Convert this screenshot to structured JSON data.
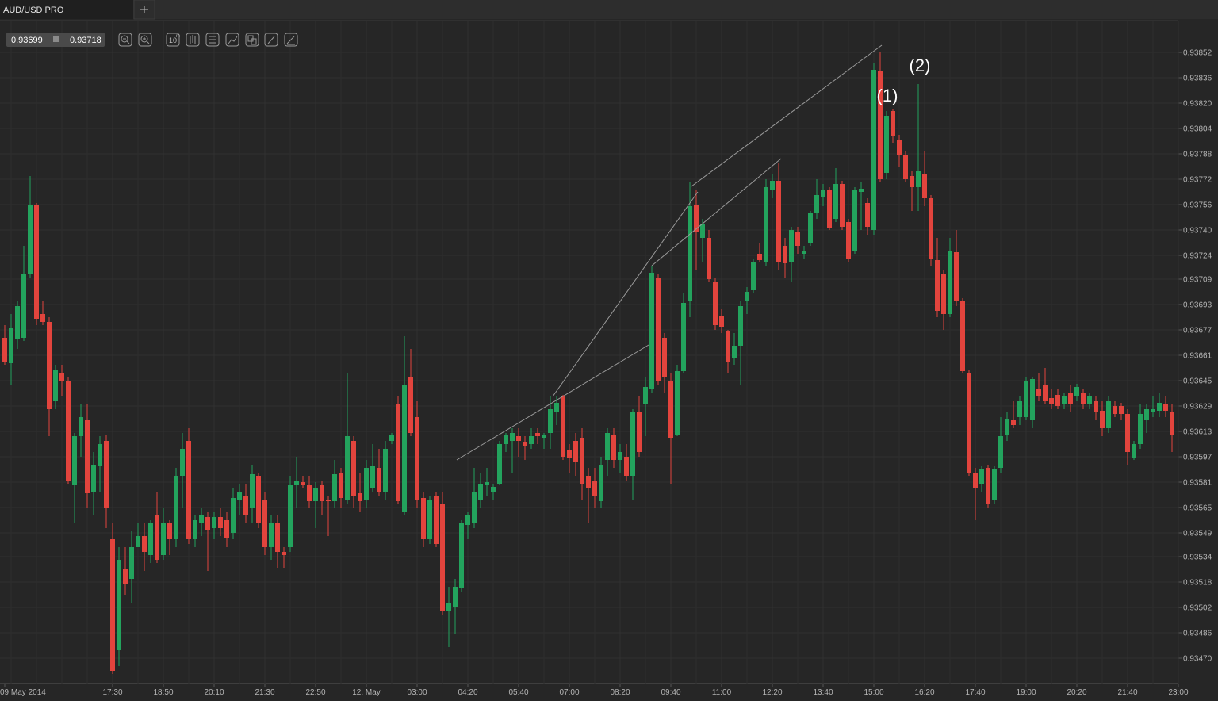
{
  "ui": {
    "tab_title": "AUD/USD PRO",
    "bid": "0.93699",
    "ask": "0.93718",
    "interval": "10",
    "interval_unit": "m"
  },
  "chart_data": {
    "type": "candlestick",
    "categories": [
      "09 May 2014",
      null,
      null,
      null,
      null,
      null,
      null,
      null,
      null,
      null,
      null,
      null,
      null,
      null,
      null,
      null,
      null,
      "17:30",
      null,
      null,
      null,
      null,
      null,
      null,
      null,
      "18:50",
      null,
      null,
      null,
      null,
      null,
      null,
      null,
      "20:10",
      null,
      null,
      null,
      null,
      null,
      null,
      null,
      "21:30",
      null,
      null,
      null,
      null,
      null,
      null,
      null,
      "22:50",
      null,
      null,
      null,
      null,
      null,
      null,
      null,
      "12. May",
      null,
      null,
      null,
      null,
      null,
      null,
      null,
      "03:00",
      null,
      null,
      null,
      null,
      null,
      null,
      null,
      "04:20",
      null,
      null,
      null,
      null,
      null,
      null,
      null,
      "05:40",
      null,
      null,
      null,
      null,
      null,
      null,
      null,
      "07:00",
      null,
      null,
      null,
      null,
      null,
      null,
      null,
      "08:20",
      null,
      null,
      null,
      null,
      null,
      null,
      null,
      "09:40",
      null,
      null,
      null,
      null,
      null,
      null,
      null,
      "11:00",
      null,
      null,
      null,
      null,
      null,
      null,
      null,
      "12:20",
      null,
      null,
      null,
      null,
      null,
      null,
      null,
      "13:40",
      null,
      null,
      null,
      null,
      null,
      null,
      null,
      "15:00",
      null,
      null,
      null,
      null,
      null,
      null,
      null,
      "16:20",
      null,
      null,
      null,
      null,
      null,
      null,
      null,
      "17:40",
      null,
      null,
      null,
      null,
      null,
      null,
      null,
      "19:00",
      null,
      null,
      null,
      null,
      null,
      null,
      null,
      "20:20",
      null,
      null,
      null,
      null,
      null,
      null,
      null,
      "21:40",
      null,
      null,
      null,
      null,
      null,
      null,
      null,
      "23:00"
    ],
    "open": [
      0.93672,
      0.93656,
      0.93671,
      0.93672,
      0.93712,
      0.93756,
      0.93687,
      0.93682,
      0.93632,
      0.9365,
      0.93645,
      0.93579,
      0.9361,
      0.9362,
      0.93575,
      0.93591,
      0.93607,
      0.93545,
      0.93475,
      0.93526,
      0.9352,
      0.9354,
      0.93547,
      0.93535,
      0.9356,
      0.93535,
      0.93555,
      0.93545,
      0.93585,
      0.93607,
      0.93545,
      0.93555,
      0.93559,
      0.93552,
      0.93559,
      0.93557,
      0.93549,
      0.9357,
      0.93572,
      0.93565,
      0.93585,
      0.9357,
      0.9354,
      0.93555,
      0.93537,
      0.9354,
      0.93579,
      0.93581,
      0.93579,
      0.93569,
      0.93579,
      0.9357,
      0.93569,
      0.93587,
      0.9357,
      0.93607,
      0.93574,
      0.9357,
      0.93577,
      0.9359,
      0.93575,
      0.93607,
      0.9363,
      0.93562,
      0.93647,
      0.93622,
      0.93571,
      0.93545,
      0.93572,
      0.93567,
      0.935,
      0.93502,
      0.93514,
      0.93554,
      0.93555,
      0.9357,
      0.93579,
      0.93575,
      0.9358,
      0.93605,
      0.93607,
      0.9361,
      0.93606,
      0.93605,
      0.93612,
      0.93609,
      0.93612,
      0.93625,
      0.93635,
      0.93601,
      0.93607,
      0.93609,
      0.93585,
      0.93582,
      0.93569,
      0.93595,
      0.93611,
      0.93595,
      0.93597,
      0.93585,
      0.93625,
      0.9363,
      0.9364,
      0.9371,
      0.93672,
      0.93645,
      0.93611,
      0.93651,
      0.93695,
      0.93756,
      0.93735,
      0.93735,
      0.93707,
      0.93686,
      0.93676,
      0.93659,
      0.93667,
      0.93695,
      0.93702,
      0.93725,
      0.9372,
      0.93765,
      0.93771,
      0.9373,
      0.9372,
      0.93739,
      0.93725,
      0.93732,
      0.93751,
      0.93761,
      0.93765,
      0.93747,
      0.93769,
      0.93745,
      0.93727,
      0.93764,
      0.93757,
      0.9374,
      0.9384,
      0.93776,
      0.93815,
      0.93797,
      0.93787,
      0.93774,
      0.93767,
      0.93775,
      0.9376,
      0.93721,
      0.93712,
      0.93687,
      0.93726,
      0.93695,
      0.9365,
      0.93587,
      0.9358,
      0.9359,
      0.9357,
      0.9359,
      0.93611,
      0.9362,
      0.93622,
      0.93622,
      0.9362,
      0.9364,
      0.93642,
      0.93634,
      0.93636,
      0.9363,
      0.93637,
      0.93635,
      0.93637,
      0.9363,
      0.93632,
      0.93626,
      0.93615,
      0.93629,
      0.93629,
      0.93624,
      0.93596,
      0.93605,
      0.9362,
      0.93625,
      0.93626,
      0.9363,
      0.93625,
      null
    ],
    "high": [
      0.9368,
      0.93687,
      0.93695,
      0.9373,
      0.93774,
      0.93757,
      0.93695,
      0.93685,
      0.93655,
      0.93655,
      0.93647,
      0.93612,
      0.9363,
      0.9363,
      0.936,
      0.9361,
      0.93611,
      0.93555,
      0.9354,
      0.9354,
      0.9355,
      0.93555,
      0.93555,
      0.93557,
      0.93575,
      0.93565,
      0.93557,
      0.9359,
      0.93612,
      0.93615,
      0.9356,
      0.93565,
      0.93562,
      0.93562,
      0.93565,
      0.93562,
      0.93577,
      0.9358,
      0.9358,
      0.93592,
      0.93587,
      0.93575,
      0.9356,
      0.9356,
      0.9354,
      0.93585,
      0.93597,
      0.93585,
      0.93585,
      0.93581,
      0.93582,
      0.93572,
      0.93595,
      0.9359,
      0.9365,
      0.9361,
      0.93587,
      0.93595,
      0.93605,
      0.93602,
      0.93607,
      0.93612,
      0.93635,
      0.93673,
      0.93665,
      0.93632,
      0.93575,
      0.93572,
      0.93575,
      0.93575,
      0.93515,
      0.9352,
      0.93557,
      0.93562,
      0.9359,
      0.93587,
      0.9359,
      0.9358,
      0.93607,
      0.93612,
      0.93615,
      0.93615,
      0.9361,
      0.93615,
      0.93615,
      0.93612,
      0.93635,
      0.93635,
      0.93636,
      0.93605,
      0.93612,
      0.93615,
      0.9359,
      0.9359,
      0.93597,
      0.93615,
      0.93615,
      0.93605,
      0.93605,
      0.93627,
      0.93635,
      0.93647,
      0.93717,
      0.93712,
      0.93675,
      0.9365,
      0.93655,
      0.937,
      0.9377,
      0.93765,
      0.93747,
      0.9374,
      0.9371,
      0.9369,
      0.93677,
      0.93675,
      0.93695,
      0.93704,
      0.93722,
      0.93732,
      0.93772,
      0.93775,
      0.93782,
      0.93735,
      0.93742,
      0.93742,
      0.9373,
      0.93752,
      0.93772,
      0.93769,
      0.93767,
      0.93779,
      0.93771,
      0.93747,
      0.93767,
      0.9377,
      0.9376,
      0.93845,
      0.93852,
      0.93815,
      0.93816,
      0.938,
      0.9379,
      0.93777,
      0.93832,
      0.9379,
      0.93762,
      0.93735,
      0.93715,
      0.93735,
      0.9374,
      0.93697,
      0.93652,
      0.9359,
      0.93591,
      0.93592,
      0.93591,
      0.93622,
      0.93625,
      0.93632,
      0.93635,
      0.93647,
      0.93647,
      0.9365,
      0.93653,
      0.9364,
      0.9364,
      0.93637,
      0.93642,
      0.93643,
      0.9364,
      0.93637,
      0.93635,
      0.93632,
      0.93635,
      0.93632,
      0.93631,
      0.93627,
      0.93607,
      0.9363,
      0.9363,
      0.93635,
      0.93637,
      0.93635,
      0.9363,
      null
    ],
    "low": [
      0.93655,
      0.93642,
      0.93665,
      0.9367,
      0.9371,
      0.9368,
      0.9368,
      0.9361,
      0.93627,
      0.93635,
      0.9358,
      0.93555,
      0.93597,
      0.93565,
      0.9356,
      0.93575,
      0.93552,
      0.9346,
      0.93465,
      0.9351,
      0.93505,
      0.9354,
      0.93525,
      0.9353,
      0.9353,
      0.93532,
      0.93535,
      0.9354,
      0.93565,
      0.93542,
      0.9354,
      0.93547,
      0.93525,
      0.93545,
      0.93547,
      0.9354,
      0.93545,
      0.9356,
      0.93555,
      0.93555,
      0.93552,
      0.93535,
      0.93532,
      0.93527,
      0.93527,
      0.93537,
      0.93565,
      0.93577,
      0.93565,
      0.93552,
      0.9356,
      0.93547,
      0.93565,
      0.93565,
      0.93567,
      0.93565,
      0.93562,
      0.93565,
      0.93575,
      0.93572,
      0.9357,
      0.93605,
      0.93567,
      0.9356,
      0.9361,
      0.93565,
      0.9354,
      0.93542,
      0.9354,
      0.93497,
      0.93477,
      0.93485,
      0.93512,
      0.93545,
      0.93552,
      0.93565,
      0.93572,
      0.9357,
      0.93579,
      0.936,
      0.93587,
      0.93597,
      0.93595,
      0.93602,
      0.93605,
      0.93602,
      0.93602,
      0.93617,
      0.93595,
      0.93587,
      0.93585,
      0.9357,
      0.93555,
      0.93565,
      0.93565,
      0.93585,
      0.9359,
      0.93587,
      0.93582,
      0.9357,
      0.93597,
      0.9361,
      0.93637,
      0.93642,
      0.93637,
      0.9358,
      0.9361,
      0.9365,
      0.93685,
      0.93715,
      0.9372,
      0.93707,
      0.93677,
      0.93675,
      0.9365,
      0.93655,
      0.93642,
      0.93687,
      0.937,
      0.9372,
      0.93717,
      0.9376,
      0.93715,
      0.9371,
      0.93707,
      0.93725,
      0.93722,
      0.9373,
      0.93747,
      0.93755,
      0.9374,
      0.93745,
      0.9374,
      0.9372,
      0.93725,
      0.9374,
      0.93737,
      0.93737,
      0.9377,
      0.93772,
      0.93795,
      0.9378,
      0.9377,
      0.93752,
      0.93752,
      0.93755,
      0.93717,
      0.93685,
      0.93677,
      0.93685,
      0.93692,
      0.9365,
      0.93585,
      0.93557,
      0.93575,
      0.93565,
      0.93567,
      0.93587,
      0.93607,
      0.93615,
      0.93617,
      0.9362,
      0.93615,
      0.93632,
      0.9363,
      0.93627,
      0.93627,
      0.93627,
      0.93625,
      0.93632,
      0.93627,
      0.93627,
      0.9362,
      0.9361,
      0.93612,
      0.93622,
      0.9362,
      0.93592,
      0.93595,
      0.93602,
      0.93612,
      0.93622,
      0.93622,
      0.93622,
      0.936,
      null
    ],
    "close": [
      0.93657,
      0.93678,
      0.93692,
      0.93712,
      0.93756,
      0.93684,
      0.93682,
      0.93627,
      0.93652,
      0.93645,
      0.93582,
      0.9361,
      0.93622,
      0.93574,
      0.93592,
      0.93605,
      0.93565,
      0.93462,
      0.93532,
      0.93517,
      0.9354,
      0.93547,
      0.93537,
      0.93555,
      0.93532,
      0.93555,
      0.93545,
      0.93585,
      0.93602,
      0.93545,
      0.93557,
      0.9356,
      0.93551,
      0.93559,
      0.93552,
      0.93546,
      0.93571,
      0.93575,
      0.9356,
      0.93586,
      0.93555,
      0.9354,
      0.93555,
      0.93537,
      0.93535,
      0.93579,
      0.93582,
      0.93579,
      0.93569,
      0.93577,
      0.93569,
      0.93569,
      0.93586,
      0.93571,
      0.9361,
      0.93572,
      0.93569,
      0.9359,
      0.93591,
      0.93575,
      0.93602,
      0.93611,
      0.93569,
      0.93642,
      0.93612,
      0.9357,
      0.93545,
      0.9357,
      0.93542,
      0.935,
      0.93505,
      0.93515,
      0.93555,
      0.9356,
      0.93575,
      0.9358,
      0.93581,
      0.93578,
      0.93605,
      0.93611,
      0.93612,
      0.93607,
      0.93604,
      0.9361,
      0.9361,
      0.93611,
      0.93627,
      0.93631,
      0.93597,
      0.93596,
      0.93594,
      0.9358,
      0.93577,
      0.93572,
      0.93592,
      0.93612,
      0.93595,
      0.936,
      0.93585,
      0.93625,
      0.936,
      0.93641,
      0.93713,
      0.93645,
      0.93647,
      0.93609,
      0.93651,
      0.93694,
      0.93755,
      0.93739,
      0.93744,
      0.93709,
      0.9368,
      0.93679,
      0.93657,
      0.93667,
      0.93692,
      0.93701,
      0.9372,
      0.93721,
      0.93767,
      0.93771,
      0.9372,
      0.93719,
      0.9374,
      0.9373,
      0.93727,
      0.93751,
      0.93762,
      0.93765,
      0.93741,
      0.93769,
      0.93742,
      0.93722,
      0.93765,
      0.93766,
      0.93742,
      0.93841,
      0.93772,
      0.93812,
      0.93799,
      0.93787,
      0.93772,
      0.93767,
      0.93777,
      0.9376,
      0.93722,
      0.93689,
      0.93687,
      0.93727,
      0.93695,
      0.93651,
      0.93587,
      0.93577,
      0.93589,
      0.93567,
      0.93589,
      0.9361,
      0.93621,
      0.93617,
      0.93632,
      0.93645,
      0.93646,
      0.93635,
      0.93632,
      0.9363,
      0.93629,
      0.93635,
      0.9363,
      0.93641,
      0.9363,
      0.93635,
      0.93625,
      0.93615,
      0.93632,
      0.93624,
      0.93624,
      0.936,
      0.93605,
      0.93624,
      0.93627,
      0.93627,
      0.93631,
      0.93626,
      0.93611,
      null
    ],
    "up_color": "#23a35d",
    "down_color": "#e2443d",
    "ylim": [
      0.93454,
      0.93872
    ],
    "yticks": [
      0.93852,
      0.93836,
      {
        "value": 0.9382,
        "label": "0.93820"
      },
      0.93804,
      0.93788,
      0.93772,
      0.93756,
      {
        "value": 0.9374,
        "label": "0.93740"
      },
      0.93724,
      0.93709,
      0.93693,
      0.93677,
      0.93661,
      0.93645,
      0.93629,
      0.93613,
      0.93597,
      0.93581,
      0.93565,
      0.93549,
      0.93534,
      0.93518,
      0.93502,
      0.93486,
      {
        "value": 0.9347,
        "label": "0.93470"
      }
    ],
    "grid": true,
    "annotations": [
      "(1)",
      "(2)"
    ]
  }
}
